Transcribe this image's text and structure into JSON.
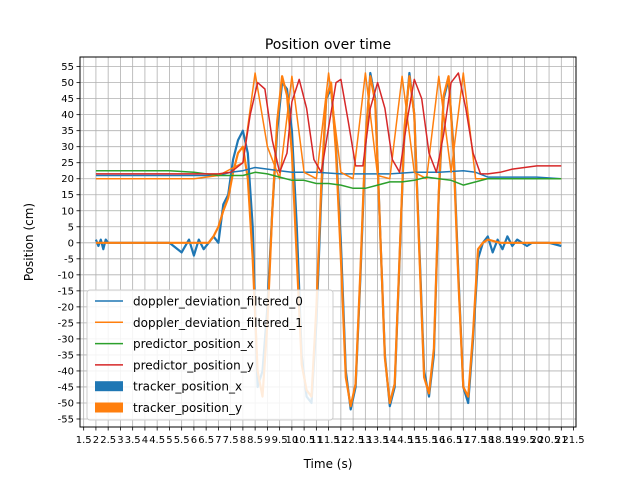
{
  "chart_data": {
    "type": "line",
    "title": "Position over time",
    "xlabel": "Time (s)",
    "ylabel": "Position (cm)",
    "xlim": [
      1.35,
      21.6
    ],
    "ylim": [
      -57.5,
      58
    ],
    "grid": true,
    "legend_position": "lower-left",
    "x_ticks": [
      "1.5",
      "2",
      "2.5",
      "3",
      "3.5",
      "4",
      "4.5",
      "5",
      "5.5",
      "6",
      "6.5",
      "7",
      "7.5",
      "8",
      "8.5",
      "9",
      "9.5",
      "10",
      "10.5",
      "11",
      "11.5",
      "12",
      "12.5",
      "13",
      "13.5",
      "14",
      "14.5",
      "15",
      "15.5",
      "16",
      "16.5",
      "17",
      "17.5",
      "18",
      "18.5",
      "19",
      "19.5",
      "20",
      "20.5",
      "21",
      "21.5"
    ],
    "y_ticks": [
      55,
      50,
      45,
      40,
      35,
      30,
      25,
      20,
      15,
      10,
      5,
      0,
      -5,
      -10,
      -15,
      -20,
      -25,
      -30,
      -35,
      -40,
      -45,
      -50,
      -55
    ],
    "series": [
      {
        "name": "tracker_position_x",
        "legend_style": "patch",
        "color": "#1f77b4",
        "x": [
          2.0,
          2.1,
          2.2,
          2.3,
          2.4,
          2.5,
          3.0,
          4.0,
          5.0,
          5.5,
          5.8,
          6.0,
          6.2,
          6.4,
          6.6,
          6.8,
          7.0,
          7.2,
          7.4,
          7.6,
          7.8,
          8.0,
          8.2,
          8.4,
          8.5,
          8.6,
          8.8,
          9.0,
          9.2,
          9.4,
          9.6,
          9.8,
          10.0,
          10.2,
          10.4,
          10.6,
          10.8,
          11.0,
          11.2,
          11.4,
          11.6,
          11.8,
          12.0,
          12.2,
          12.4,
          12.6,
          12.8,
          13.0,
          13.2,
          13.4,
          13.6,
          13.8,
          14.0,
          14.2,
          14.4,
          14.6,
          14.8,
          15.0,
          15.2,
          15.4,
          15.6,
          15.8,
          16.0,
          16.2,
          16.4,
          16.6,
          16.8,
          17.0,
          17.2,
          17.4,
          17.6,
          17.8,
          18.0,
          18.2,
          18.4,
          18.6,
          18.8,
          19.0,
          19.2,
          19.4,
          19.6,
          19.8,
          20.0,
          20.5,
          21.0
        ],
        "y": [
          1,
          -1,
          1,
          -2,
          1,
          0,
          0,
          0,
          0,
          -3,
          1,
          -4,
          1,
          -2,
          0,
          2,
          0,
          12,
          15,
          26,
          32,
          35,
          28,
          5,
          -20,
          -45,
          -40,
          -20,
          10,
          35,
          50,
          48,
          35,
          5,
          -35,
          -48,
          -50,
          -25,
          15,
          45,
          48,
          30,
          0,
          -40,
          -52,
          -45,
          -10,
          30,
          53,
          45,
          5,
          -35,
          -51,
          -45,
          -5,
          35,
          53,
          40,
          0,
          -40,
          -48,
          -35,
          15,
          45,
          51,
          30,
          -10,
          -45,
          -50,
          -30,
          -5,
          0,
          2,
          -3,
          1,
          -2,
          2,
          -1,
          1,
          0,
          -1,
          0,
          0,
          0,
          -1
        ],
        "render": "thick"
      },
      {
        "name": "tracker_position_y",
        "legend_style": "patch",
        "color": "#ff7f0e",
        "x": [
          2.0,
          3.0,
          4.0,
          5.0,
          6.0,
          6.6,
          6.8,
          7.0,
          7.2,
          7.4,
          7.6,
          7.8,
          8.0,
          8.2,
          8.4,
          8.6,
          8.8,
          9.0,
          9.2,
          9.4,
          9.6,
          9.8,
          10.0,
          10.2,
          10.4,
          10.6,
          10.8,
          11.0,
          11.2,
          11.4,
          11.6,
          11.8,
          12.0,
          12.2,
          12.4,
          12.6,
          12.8,
          13.0,
          13.2,
          13.4,
          13.6,
          13.8,
          14.0,
          14.2,
          14.4,
          14.6,
          14.8,
          15.0,
          15.2,
          15.4,
          15.6,
          15.8,
          16.0,
          16.2,
          16.4,
          16.6,
          16.8,
          17.0,
          17.2,
          17.4,
          17.6,
          17.8,
          18.0,
          18.5,
          19.0,
          19.5,
          20.0,
          21.0
        ],
        "y": [
          0,
          0,
          0,
          0,
          0,
          0,
          2,
          5,
          10,
          14,
          22,
          28,
          30,
          20,
          -5,
          -40,
          -48,
          -25,
          10,
          38,
          52,
          46,
          28,
          -5,
          -38,
          -46,
          -48,
          -20,
          18,
          45,
          50,
          28,
          -5,
          -42,
          -51,
          -44,
          -8,
          32,
          52,
          44,
          5,
          -36,
          -50,
          -44,
          -4,
          36,
          52,
          40,
          -2,
          -42,
          -47,
          -33,
          16,
          46,
          52,
          28,
          -12,
          -45,
          -48,
          -28,
          -2,
          0,
          1,
          0,
          0,
          0,
          0,
          0
        ],
        "render": "thick"
      },
      {
        "name": "doppler_deviation_filtered_0",
        "legend_style": "line",
        "color": "#1f77b4",
        "x": [
          2.0,
          3.0,
          4.0,
          5.0,
          6.0,
          7.0,
          7.5,
          8.0,
          8.5,
          9.0,
          9.5,
          10.0,
          11.0,
          12.0,
          13.0,
          14.0,
          15.0,
          16.0,
          17.0,
          17.5,
          18.0,
          19.0,
          20.0,
          21.0
        ],
        "y": [
          21,
          21,
          21,
          21,
          21,
          21,
          22,
          22.5,
          23.5,
          23,
          22.5,
          22,
          22,
          21.5,
          21.5,
          21.5,
          22,
          22,
          22.5,
          22,
          20.5,
          20.5,
          20.5,
          20
        ],
        "render": "line"
      },
      {
        "name": "doppler_deviation_filtered_1",
        "legend_style": "line",
        "color": "#ff7f0e",
        "x": [
          2.0,
          3.0,
          4.0,
          5.0,
          6.0,
          7.0,
          8.0,
          8.5,
          9.0,
          9.5,
          10.0,
          10.5,
          11.0,
          11.5,
          12.0,
          12.5,
          13.0,
          13.5,
          14.0,
          14.5,
          15.0,
          15.5,
          16.0,
          16.5,
          17.0,
          17.5,
          18.0,
          19.0,
          20.0,
          21.0
        ],
        "y": [
          20,
          20,
          20,
          20,
          20,
          21,
          25,
          53,
          30,
          20,
          52,
          22,
          20,
          53,
          22,
          20,
          53,
          21,
          20,
          52,
          22,
          20,
          52,
          22,
          53,
          20,
          20,
          20,
          20,
          20
        ],
        "render": "line"
      },
      {
        "name": "predictor_position_x",
        "legend_style": "line",
        "color": "#2ca02c",
        "x": [
          2.0,
          3.0,
          4.0,
          5.0,
          6.0,
          7.0,
          8.0,
          8.5,
          9.0,
          9.5,
          10.0,
          10.5,
          11.0,
          11.5,
          12.0,
          12.5,
          13.0,
          13.5,
          14.0,
          14.5,
          15.0,
          15.5,
          16.0,
          16.5,
          17.0,
          17.5,
          18.0,
          18.5,
          19.0,
          20.0,
          21.0
        ],
        "y": [
          22.5,
          22.5,
          22.5,
          22.5,
          22,
          21,
          21,
          22,
          21.5,
          20.5,
          19.5,
          19.5,
          18.5,
          18.5,
          18,
          17,
          17,
          18,
          19,
          19,
          19.5,
          20.5,
          20,
          19.5,
          18,
          19,
          20,
          20,
          20,
          20,
          20
        ],
        "render": "line"
      },
      {
        "name": "predictor_position_y",
        "legend_style": "line",
        "color": "#d62728",
        "x": [
          2.0,
          3.0,
          4.0,
          5.0,
          6.0,
          7.0,
          7.5,
          8.0,
          8.3,
          8.6,
          8.9,
          9.2,
          9.5,
          9.8,
          10.0,
          10.3,
          10.6,
          10.9,
          11.2,
          11.5,
          11.8,
          12.0,
          12.3,
          12.6,
          12.9,
          13.2,
          13.5,
          13.8,
          14.1,
          14.4,
          14.7,
          15.0,
          15.3,
          15.6,
          15.9,
          16.2,
          16.5,
          16.8,
          17.1,
          17.4,
          17.7,
          18.0,
          18.5,
          19.0,
          20.0,
          21.0
        ],
        "y": [
          21.5,
          21.5,
          21.5,
          21.5,
          21.5,
          21.5,
          22,
          25,
          40,
          50,
          48,
          32,
          22,
          28,
          44,
          51,
          42,
          26,
          22,
          36,
          50,
          51,
          38,
          24,
          24,
          42,
          50,
          42,
          26,
          22,
          38,
          51,
          45,
          28,
          22,
          34,
          50,
          53,
          42,
          28,
          21.5,
          21.5,
          22,
          23,
          24,
          24
        ],
        "render": "line"
      }
    ]
  }
}
